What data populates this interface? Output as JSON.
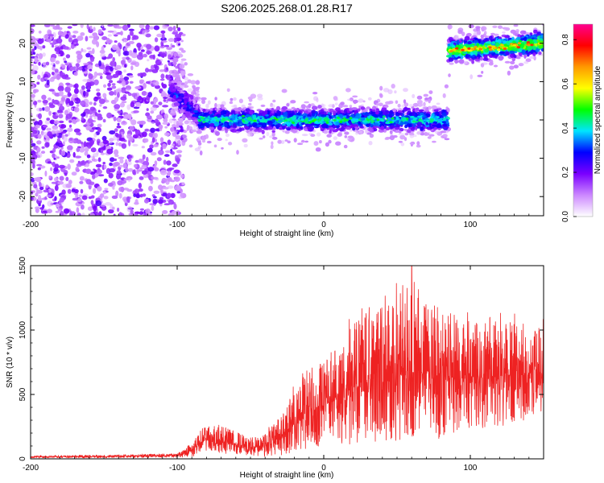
{
  "chart_data": [
    {
      "type": "heatmap",
      "title": "S206.2025.268.01.28.R17",
      "xlabel": "Height of straight line (km)",
      "ylabel": "Frequency (Hz)",
      "xlim": [
        -200,
        150
      ],
      "ylim": [
        -25,
        25
      ],
      "x_ticks": [
        -200,
        -100,
        0,
        100
      ],
      "y_ticks": [
        -20,
        -10,
        0,
        10,
        20
      ],
      "grid": false,
      "colorbar": {
        "label": "Normalized spectral amplitude",
        "range": [
          0.0,
          0.87
        ],
        "ticks": [
          0.0,
          0.2,
          0.4,
          0.6,
          0.8
        ],
        "colors": [
          "#ffffff",
          "#cc88ff",
          "#7a00ff",
          "#0000ff",
          "#00e5ff",
          "#00ff00",
          "#ffff00",
          "#ff9900",
          "#ff0000",
          "#ff0090"
        ]
      },
      "features": [
        {
          "name": "noise",
          "x_range": [
            -200,
            -95
          ],
          "freq_range": [
            -25,
            25
          ],
          "level": 0.15
        },
        {
          "name": "transition",
          "x_range": [
            -105,
            -85
          ],
          "freq_start": 8,
          "freq_end": 1,
          "level": 0.3
        },
        {
          "name": "main-band",
          "x_range": [
            -85,
            85
          ],
          "freq_center": 0,
          "freq_halfwidth": 2.5,
          "level": 0.45
        },
        {
          "name": "upper-band",
          "x_range": [
            85,
            150
          ],
          "freq_start": 18,
          "freq_end": 20,
          "freq_halfwidth": 2.5,
          "level": 0.6
        }
      ]
    },
    {
      "type": "line",
      "xlabel": "Height of straight line (km)",
      "ylabel": "SNR (10 * v/v)",
      "xlim": [
        -200,
        150
      ],
      "ylim": [
        0,
        1500
      ],
      "x_ticks": [
        -200,
        -100,
        0,
        100
      ],
      "y_ticks": [
        0,
        500,
        1000,
        1500
      ],
      "grid": false,
      "series": [
        {
          "name": "SNR",
          "color": "#ee2222",
          "envelope": {
            "x": [
              -200,
              -150,
              -100,
              -95,
              -90,
              -85,
              -80,
              -70,
              -60,
              -50,
              -45,
              -40,
              -30,
              -25,
              -20,
              -15,
              -10,
              0,
              10,
              20,
              30,
              40,
              50,
              60,
              70,
              80,
              90,
              100,
              110,
              120,
              130,
              140,
              150
            ],
            "mid": [
              15,
              18,
              25,
              40,
              70,
              120,
              150,
              140,
              120,
              90,
              90,
              100,
              160,
              220,
              280,
              330,
              380,
              420,
              470,
              560,
              620,
              640,
              680,
              690,
              660,
              640,
              650,
              640,
              630,
              650,
              650,
              660,
              680
            ],
            "amp": [
              10,
              12,
              15,
              30,
              60,
              90,
              110,
              110,
              90,
              70,
              80,
              100,
              160,
              220,
              280,
              320,
              340,
              360,
              420,
              500,
              560,
              560,
              620,
              640,
              560,
              540,
              500,
              460,
              430,
              450,
              420,
              400,
              360
            ]
          },
          "peak": {
            "x": 60,
            "y": 1500
          }
        }
      ]
    }
  ]
}
